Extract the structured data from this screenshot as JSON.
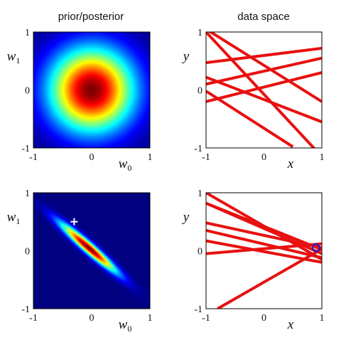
{
  "titles": {
    "left": "prior/posterior",
    "right": "data space"
  },
  "chart_data": [
    {
      "type": "heatmap",
      "panel": "prior",
      "title": "prior/posterior",
      "xlabel": "w0",
      "ylabel": "w1",
      "xlim": [
        -1,
        1
      ],
      "ylim": [
        -1,
        1
      ],
      "xticks": [
        "-1",
        "0",
        "1"
      ],
      "yticks": [
        "-1",
        "0",
        "1"
      ],
      "colormap": "jet",
      "gaussian": {
        "mean": [
          0,
          0
        ],
        "sigma": [
          0.5,
          0.5
        ],
        "rho": 0
      }
    },
    {
      "type": "line",
      "panel": "data-prior",
      "title": "data space",
      "xlabel": "x",
      "ylabel": "y",
      "xlim": [
        -1,
        1
      ],
      "ylim": [
        -1,
        1
      ],
      "xticks": [
        "-1",
        "0",
        "1"
      ],
      "yticks": [
        "-1",
        "0",
        "1"
      ],
      "line_color": "#e81010",
      "series": [
        {
          "x": [
            -1.0,
            1.0
          ],
          "y": [
            1.0,
            -1.15
          ]
        },
        {
          "x": [
            -1.0,
            1.0
          ],
          "y": [
            0.47,
            0.72
          ]
        },
        {
          "x": [
            -1.0,
            1.0
          ],
          "y": [
            0.22,
            -0.55
          ]
        },
        {
          "x": [
            -1.0,
            1.0
          ],
          "y": [
            0.1,
            0.55
          ]
        },
        {
          "x": [
            -1.0,
            1.0
          ],
          "y": [
            -0.2,
            0.3
          ]
        },
        {
          "x": [
            -1.0,
            1.0
          ],
          "y": [
            1.05,
            -0.2
          ]
        },
        {
          "x": [
            -1.0,
            0.5
          ],
          "y": [
            -0.02,
            -0.98
          ]
        }
      ]
    },
    {
      "type": "heatmap",
      "panel": "posterior",
      "xlabel": "w0",
      "ylabel": "w1",
      "xlim": [
        -1,
        1
      ],
      "ylim": [
        -1,
        1
      ],
      "xticks": [
        "-1",
        "0",
        "1"
      ],
      "yticks": [
        "-1",
        "0",
        "1"
      ],
      "colormap": "jet",
      "gaussian": {
        "mean": [
          -0.05,
          0.05
        ],
        "sigma": [
          0.33,
          0.29
        ],
        "rho": -0.96
      },
      "marker": {
        "x": -0.3,
        "y": 0.5,
        "symbol": "+",
        "color": "#ffffff"
      }
    },
    {
      "type": "line",
      "panel": "data-posterior",
      "xlabel": "x",
      "ylabel": "y",
      "xlim": [
        -1,
        1
      ],
      "ylim": [
        -1,
        1
      ],
      "xticks": [
        "-1",
        "0",
        "1"
      ],
      "yticks": [
        "-1",
        "0",
        "1"
      ],
      "line_color": "#e81010",
      "series": [
        {
          "x": [
            -1.0,
            1.0
          ],
          "y": [
            1.0,
            -0.15
          ]
        },
        {
          "x": [
            -1.0,
            1.0
          ],
          "y": [
            0.82,
            -0.05
          ]
        },
        {
          "x": [
            -1.0,
            1.0
          ],
          "y": [
            0.48,
            0.05
          ]
        },
        {
          "x": [
            -1.0,
            1.0
          ],
          "y": [
            0.35,
            -0.12
          ]
        },
        {
          "x": [
            -1.0,
            1.0
          ],
          "y": [
            0.17,
            -0.2
          ]
        },
        {
          "x": [
            -1.0,
            1.0
          ],
          "y": [
            -0.05,
            0.12
          ]
        },
        {
          "x": [
            -1.0,
            1.0
          ],
          "y": [
            0.82,
            0.02
          ]
        },
        {
          "x": [
            -0.8,
            1.0
          ],
          "y": [
            -1.0,
            0.03
          ]
        }
      ],
      "points": [
        {
          "x": 0.9,
          "y": 0.05,
          "symbol": "circle",
          "color": "#1a1acc"
        }
      ]
    }
  ]
}
